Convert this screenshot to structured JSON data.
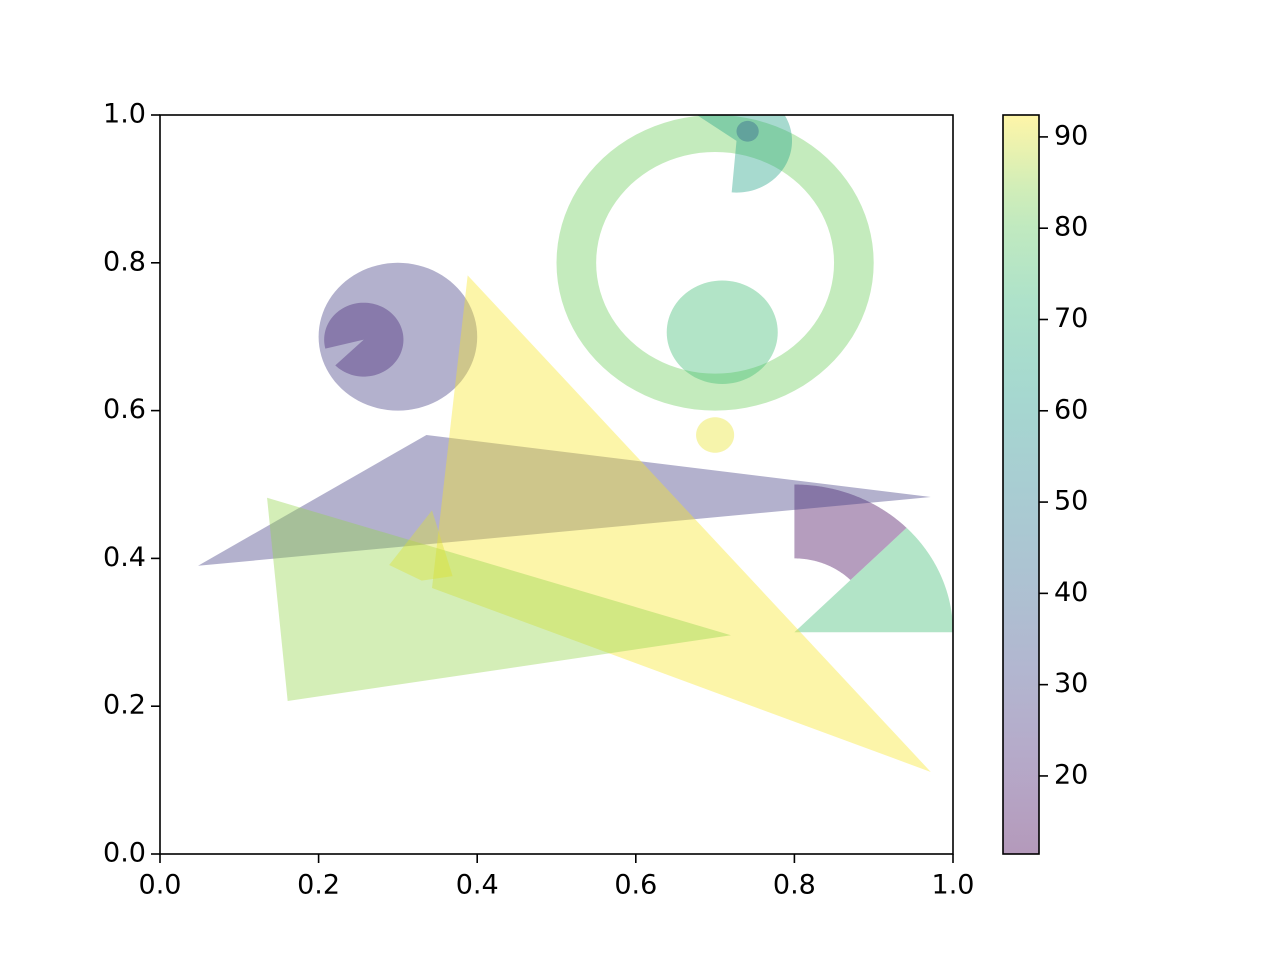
{
  "chart_data": {
    "type": "patches",
    "xlim": [
      0,
      1
    ],
    "ylim": [
      0,
      1
    ],
    "xticks": [
      {
        "value": 0,
        "label": "0.0"
      },
      {
        "value": 0.2,
        "label": "0.2"
      },
      {
        "value": 0.4,
        "label": "0.4"
      },
      {
        "value": 0.6,
        "label": "0.6"
      },
      {
        "value": 0.8,
        "label": "0.8"
      },
      {
        "value": 1,
        "label": "1.0"
      }
    ],
    "yticks": [
      {
        "value": 0,
        "label": "0.0"
      },
      {
        "value": 0.2,
        "label": "0.2"
      },
      {
        "value": 0.4,
        "label": "0.4"
      },
      {
        "value": 0.6,
        "label": "0.6"
      },
      {
        "value": 0.8,
        "label": "0.8"
      },
      {
        "value": 1,
        "label": "1.0"
      }
    ],
    "colormap": "viridis",
    "alpha": 0.4,
    "clim": [
      11.45,
      92.4
    ],
    "cticks": [
      20,
      30,
      40,
      50,
      60,
      70,
      80,
      90
    ],
    "patches": [
      {
        "kind": "circle",
        "center": [
          0.3,
          0.7
        ],
        "radius": 0.1,
        "value": 28
      },
      {
        "kind": "wedge",
        "center": [
          0.257,
          0.696
        ],
        "radius": 0.05,
        "theta": [
          224,
          554
        ],
        "value": 22
      },
      {
        "kind": "ring",
        "center": [
          0.7,
          0.8
        ],
        "radius": 0.2,
        "inner": 0.15,
        "value": 82
      },
      {
        "kind": "circle",
        "center": [
          0.709,
          0.706
        ],
        "radius": 0.07,
        "value": 74
      },
      {
        "kind": "circle",
        "center": [
          0.7,
          0.567
        ],
        "radius": 0.024,
        "value": 91
      },
      {
        "kind": "wedge",
        "center": [
          0.727,
          0.965
        ],
        "radius": 0.07,
        "theta": [
          265,
          505
        ],
        "value": 64
      },
      {
        "kind": "circle",
        "center": [
          0.741,
          0.978
        ],
        "radius": 0.014,
        "value": 40
      },
      {
        "kind": "wedge",
        "center": [
          0.8,
          0.3
        ],
        "radius": 0.2,
        "theta": [
          0,
          45
        ],
        "value": 74
      },
      {
        "kind": "annulus",
        "center": [
          0.8,
          0.3
        ],
        "radius": 0.2,
        "inner": 0.1,
        "theta": [
          45,
          90
        ],
        "value": 14
      },
      {
        "kind": "polygon",
        "points": [
          [
            0.048,
            0.39
          ],
          [
            0.336,
            0.567
          ],
          [
            0.972,
            0.483
          ]
        ],
        "value": 28
      },
      {
        "kind": "polygon",
        "points": [
          [
            0.388,
            0.783
          ],
          [
            0.343,
            0.36
          ],
          [
            0.972,
            0.111
          ]
        ],
        "value": 92
      },
      {
        "kind": "polygon",
        "points": [
          [
            0.135,
            0.482
          ],
          [
            0.161,
            0.207
          ],
          [
            0.72,
            0.296
          ]
        ],
        "value": 85
      },
      {
        "kind": "polygon",
        "points": [
          [
            0.289,
            0.391
          ],
          [
            0.343,
            0.465
          ],
          [
            0.369,
            0.376
          ],
          [
            0.33,
            0.37
          ]
        ],
        "value": 90
      }
    ]
  }
}
